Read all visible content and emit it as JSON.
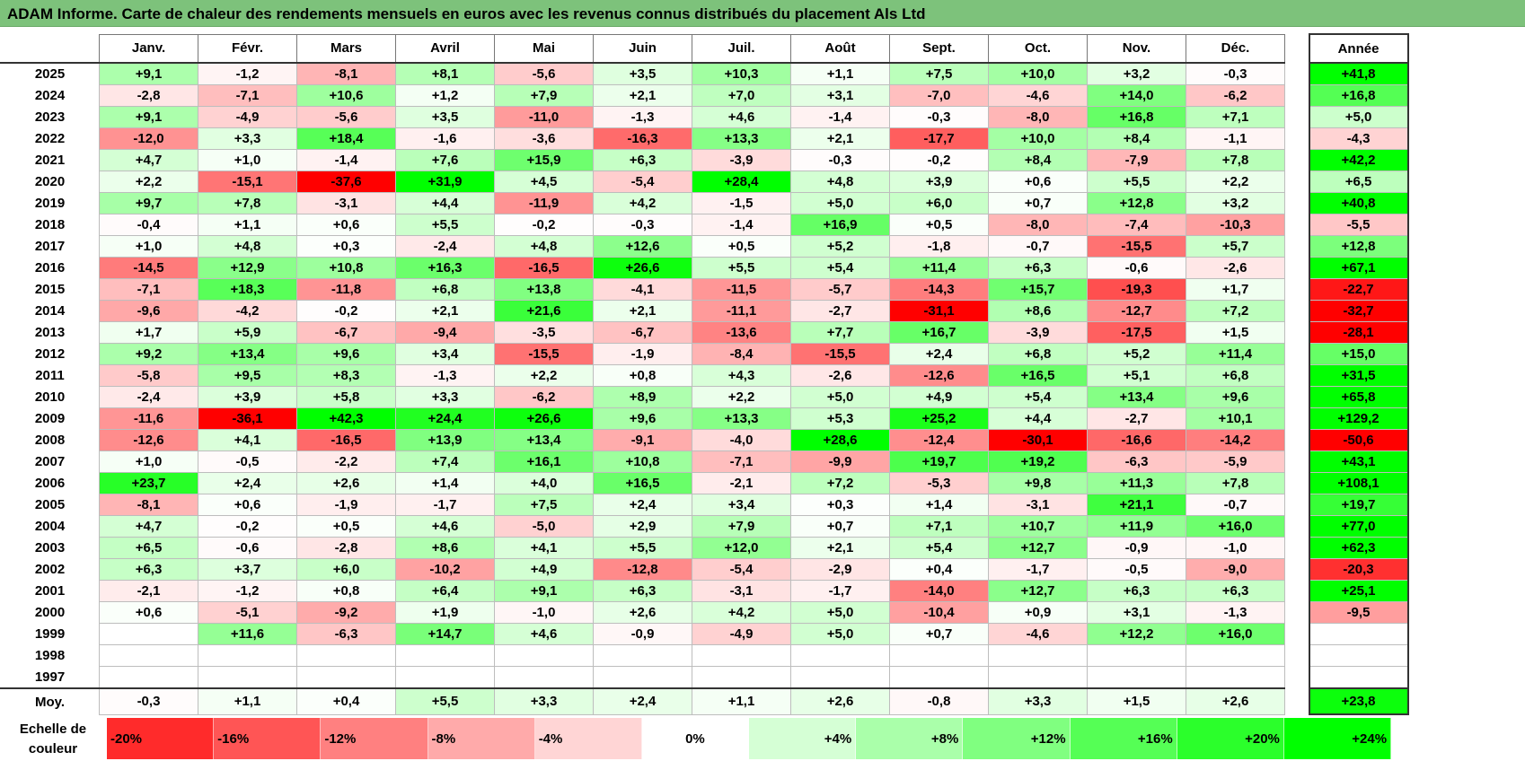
{
  "title": "ADAM Informe. Carte de chaleur des rendements mensuels en euros avec les revenus connus distribués du placement Als Ltd",
  "months": [
    "Janv.",
    "Févr.",
    "Mars",
    "Avril",
    "Mai",
    "Juin",
    "Juil.",
    "Août",
    "Sept.",
    "Oct.",
    "Nov.",
    "Déc."
  ],
  "annual_header": "Année",
  "average_label": "Moy.",
  "scale_label": "Echelle de couleur",
  "colors": {
    "negative_max": "#ff0000",
    "neutral": "#ffffff",
    "positive_max": "#00ff00"
  },
  "chart_data": {
    "type": "heatmap",
    "title": "ADAM Informe. Carte de chaleur des rendements mensuels en euros avec les revenus connus distribués du placement Als Ltd",
    "rows": [
      {
        "year": "2025",
        "months": [
          "+9,1",
          "-1,2",
          "-8,1",
          "+8,1",
          "-5,6",
          "+3,5",
          "+10,3",
          "+1,1",
          "+7,5",
          "+10,0",
          "+3,2",
          "-0,3"
        ],
        "annual": "+41,8"
      },
      {
        "year": "2024",
        "months": [
          "-2,8",
          "-7,1",
          "+10,6",
          "+1,2",
          "+7,9",
          "+2,1",
          "+7,0",
          "+3,1",
          "-7,0",
          "-4,6",
          "+14,0",
          "-6,2"
        ],
        "annual": "+16,8"
      },
      {
        "year": "2023",
        "months": [
          "+9,1",
          "-4,9",
          "-5,6",
          "+3,5",
          "-11,0",
          "-1,3",
          "+4,6",
          "-1,4",
          "-0,3",
          "-8,0",
          "+16,8",
          "+7,1"
        ],
        "annual": "+5,0"
      },
      {
        "year": "2022",
        "months": [
          "-12,0",
          "+3,3",
          "+18,4",
          "-1,6",
          "-3,6",
          "-16,3",
          "+13,3",
          "+2,1",
          "-17,7",
          "+10,0",
          "+8,4",
          "-1,1"
        ],
        "annual": "-4,3"
      },
      {
        "year": "2021",
        "months": [
          "+4,7",
          "+1,0",
          "-1,4",
          "+7,6",
          "+15,9",
          "+6,3",
          "-3,9",
          "-0,3",
          "-0,2",
          "+8,4",
          "-7,9",
          "+7,8"
        ],
        "annual": "+42,2"
      },
      {
        "year": "2020",
        "months": [
          "+2,2",
          "-15,1",
          "-37,6",
          "+31,9",
          "+4,5",
          "-5,4",
          "+28,4",
          "+4,8",
          "+3,9",
          "+0,6",
          "+5,5",
          "+2,2"
        ],
        "annual": "+6,5"
      },
      {
        "year": "2019",
        "months": [
          "+9,7",
          "+7,8",
          "-3,1",
          "+4,4",
          "-11,9",
          "+4,2",
          "-1,5",
          "+5,0",
          "+6,0",
          "+0,7",
          "+12,8",
          "+3,2"
        ],
        "annual": "+40,8"
      },
      {
        "year": "2018",
        "months": [
          "-0,4",
          "+1,1",
          "+0,6",
          "+5,5",
          "-0,2",
          "-0,3",
          "-1,4",
          "+16,9",
          "+0,5",
          "-8,0",
          "-7,4",
          "-10,3"
        ],
        "annual": "-5,5"
      },
      {
        "year": "2017",
        "months": [
          "+1,0",
          "+4,8",
          "+0,3",
          "-2,4",
          "+4,8",
          "+12,6",
          "+0,5",
          "+5,2",
          "-1,8",
          "-0,7",
          "-15,5",
          "+5,7"
        ],
        "annual": "+12,8"
      },
      {
        "year": "2016",
        "months": [
          "-14,5",
          "+12,9",
          "+10,8",
          "+16,3",
          "-16,5",
          "+26,6",
          "+5,5",
          "+5,4",
          "+11,4",
          "+6,3",
          "-0,6",
          "-2,6"
        ],
        "annual": "+67,1"
      },
      {
        "year": "2015",
        "months": [
          "-7,1",
          "+18,3",
          "-11,8",
          "+6,8",
          "+13,8",
          "-4,1",
          "-11,5",
          "-5,7",
          "-14,3",
          "+15,7",
          "-19,3",
          "+1,7"
        ],
        "annual": "-22,7"
      },
      {
        "year": "2014",
        "months": [
          "-9,6",
          "-4,2",
          "-0,2",
          "+2,1",
          "+21,6",
          "+2,1",
          "-11,1",
          "-2,7",
          "-31,1",
          "+8,6",
          "-12,7",
          "+7,2"
        ],
        "annual": "-32,7"
      },
      {
        "year": "2013",
        "months": [
          "+1,7",
          "+5,9",
          "-6,7",
          "-9,4",
          "-3,5",
          "-6,7",
          "-13,6",
          "+7,7",
          "+16,7",
          "-3,9",
          "-17,5",
          "+1,5"
        ],
        "annual": "-28,1"
      },
      {
        "year": "2012",
        "months": [
          "+9,2",
          "+13,4",
          "+9,6",
          "+3,4",
          "-15,5",
          "-1,9",
          "-8,4",
          "-15,5",
          "+2,4",
          "+6,8",
          "+5,2",
          "+11,4"
        ],
        "annual": "+15,0"
      },
      {
        "year": "2011",
        "months": [
          "-5,8",
          "+9,5",
          "+8,3",
          "-1,3",
          "+2,2",
          "+0,8",
          "+4,3",
          "-2,6",
          "-12,6",
          "+16,5",
          "+5,1",
          "+6,8"
        ],
        "annual": "+31,5"
      },
      {
        "year": "2010",
        "months": [
          "-2,4",
          "+3,9",
          "+5,8",
          "+3,3",
          "-6,2",
          "+8,9",
          "+2,2",
          "+5,0",
          "+4,9",
          "+5,4",
          "+13,4",
          "+9,6"
        ],
        "annual": "+65,8"
      },
      {
        "year": "2009",
        "months": [
          "-11,6",
          "-36,1",
          "+42,3",
          "+24,4",
          "+26,6",
          "+9,6",
          "+13,3",
          "+5,3",
          "+25,2",
          "+4,4",
          "-2,7",
          "+10,1"
        ],
        "annual": "+129,2"
      },
      {
        "year": "2008",
        "months": [
          "-12,6",
          "+4,1",
          "-16,5",
          "+13,9",
          "+13,4",
          "-9,1",
          "-4,0",
          "+28,6",
          "-12,4",
          "-30,1",
          "-16,6",
          "-14,2"
        ],
        "annual": "-50,6"
      },
      {
        "year": "2007",
        "months": [
          "+1,0",
          "-0,5",
          "-2,2",
          "+7,4",
          "+16,1",
          "+10,8",
          "-7,1",
          "-9,9",
          "+19,7",
          "+19,2",
          "-6,3",
          "-5,9"
        ],
        "annual": "+43,1"
      },
      {
        "year": "2006",
        "months": [
          "+23,7",
          "+2,4",
          "+2,6",
          "+1,4",
          "+4,0",
          "+16,5",
          "-2,1",
          "+7,2",
          "-5,3",
          "+9,8",
          "+11,3",
          "+7,8"
        ],
        "annual": "+108,1"
      },
      {
        "year": "2005",
        "months": [
          "-8,1",
          "+0,6",
          "-1,9",
          "-1,7",
          "+7,5",
          "+2,4",
          "+3,4",
          "+0,3",
          "+1,4",
          "-3,1",
          "+21,1",
          "-0,7"
        ],
        "annual": "+19,7"
      },
      {
        "year": "2004",
        "months": [
          "+4,7",
          "-0,2",
          "+0,5",
          "+4,6",
          "-5,0",
          "+2,9",
          "+7,9",
          "+0,7",
          "+7,1",
          "+10,7",
          "+11,9",
          "+16,0"
        ],
        "annual": "+77,0"
      },
      {
        "year": "2003",
        "months": [
          "+6,5",
          "-0,6",
          "-2,8",
          "+8,6",
          "+4,1",
          "+5,5",
          "+12,0",
          "+2,1",
          "+5,4",
          "+12,7",
          "-0,9",
          "-1,0"
        ],
        "annual": "+62,3"
      },
      {
        "year": "2002",
        "months": [
          "+6,3",
          "+3,7",
          "+6,0",
          "-10,2",
          "+4,9",
          "-12,8",
          "-5,4",
          "-2,9",
          "+0,4",
          "-1,7",
          "-0,5",
          "-9,0"
        ],
        "annual": "-20,3"
      },
      {
        "year": "2001",
        "months": [
          "-2,1",
          "-1,2",
          "+0,8",
          "+6,4",
          "+9,1",
          "+6,3",
          "-3,1",
          "-1,7",
          "-14,0",
          "+12,7",
          "+6,3",
          "+6,3"
        ],
        "annual": "+25,1"
      },
      {
        "year": "2000",
        "months": [
          "+0,6",
          "-5,1",
          "-9,2",
          "+1,9",
          "-1,0",
          "+2,6",
          "+4,2",
          "+5,0",
          "-10,4",
          "+0,9",
          "+3,1",
          "-1,3"
        ],
        "annual": "-9,5"
      },
      {
        "year": "1999",
        "months": [
          "",
          "+11,6",
          "-6,3",
          "+14,7",
          "+4,6",
          "-0,9",
          "-4,9",
          "+5,0",
          "+0,7",
          "-4,6",
          "+12,2",
          "+16,0"
        ],
        "annual": ""
      },
      {
        "year": "1998",
        "months": [
          "",
          "",
          "",
          "",
          "",
          "",
          "",
          "",
          "",
          "",
          "",
          ""
        ],
        "annual": ""
      },
      {
        "year": "1997",
        "months": [
          "",
          "",
          "",
          "",
          "",
          "",
          "",
          "",
          "",
          "",
          "",
          ""
        ],
        "annual": ""
      }
    ],
    "average": {
      "months": [
        "-0,3",
        "+1,1",
        "+0,4",
        "+5,5",
        "+3,3",
        "+2,4",
        "+1,1",
        "+2,6",
        "-0,8",
        "+3,3",
        "+1,5",
        "+2,6"
      ],
      "annual": "+23,8"
    },
    "color_scale": {
      "labels": [
        "-20%",
        "-16%",
        "-12%",
        "-8%",
        "-4%",
        "0%",
        "+4%",
        "+8%",
        "+12%",
        "+16%",
        "+20%",
        "+24%"
      ],
      "values": [
        -20,
        -16,
        -12,
        -8,
        -4,
        0,
        4,
        8,
        12,
        16,
        20,
        24
      ]
    }
  }
}
